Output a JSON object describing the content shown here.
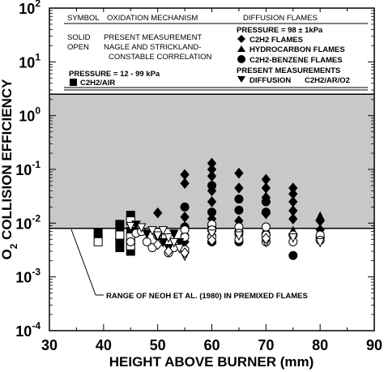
{
  "chart_data": {
    "type": "scatter",
    "xlabel": "HEIGHT ABOVE BURNER (mm)",
    "ylabel_parts": [
      "O",
      "2",
      " COLLISION EFFICIENCY"
    ],
    "xlim": [
      30,
      90
    ],
    "ylim": [
      0.0001,
      100
    ],
    "y_scale": "log",
    "x_ticks": [
      "30",
      "40",
      "50",
      "60",
      "70",
      "80",
      "90"
    ],
    "y_ticks": [
      {
        "base": "10",
        "exp": "2"
      },
      {
        "base": "10",
        "exp": "1"
      },
      {
        "base": "10",
        "exp": "0"
      },
      {
        "base": "10",
        "exp": "-1"
      },
      {
        "base": "10",
        "exp": "-2"
      },
      {
        "base": "10",
        "exp": "-3"
      },
      {
        "base": "10",
        "exp": "-4"
      }
    ],
    "band": {
      "ymin": 0.008,
      "ymax": 2.5,
      "color": "#c8c8c8"
    },
    "band_annotation": "RANGE OF NEOH ET AL. (1980) IN PREMIXED FLAMES",
    "legend": {
      "left_header": [
        "SYMBOL",
        "OXIDATION MECHANISM"
      ],
      "left_rows": [
        [
          "SOLID",
          "PRESENT MEASUREMENT"
        ],
        [
          "OPEN",
          "NAGLE AND STRICKLAND-"
        ],
        [
          "",
          "CONSTABLE CORRELATION"
        ]
      ],
      "left_pressure": "PRESSURE = 12 - 99 kPa",
      "left_series": "C2H2/AIR",
      "right_header": "DIFFUSION FLAMES",
      "right_pressure": "PRESSURE = 98 ± 1kPa",
      "right_series": [
        "C2H2 FLAMES",
        "HYDROCARBON FLAMES",
        "C2H2-BENZENE  FLAMES"
      ],
      "right_present": "PRESENT MEASUREMENTS",
      "right_diffusion": [
        "DIFFUSION",
        "C2H2/AR/O2"
      ]
    },
    "series": [
      {
        "marker": "square",
        "filled": true,
        "points": [
          [
            39,
            0.0065
          ],
          [
            43,
            0.0035
          ],
          [
            43,
            0.0045
          ],
          [
            43,
            0.0055
          ],
          [
            43,
            0.0075
          ],
          [
            43,
            0.0095
          ],
          [
            45,
            0.014
          ],
          [
            45,
            0.0045
          ],
          [
            45,
            0.003
          ],
          [
            45,
            0.007
          ]
        ]
      },
      {
        "marker": "square",
        "filled": false,
        "points": [
          [
            39,
            0.0045
          ],
          [
            43,
            0.006
          ],
          [
            45,
            0.011
          ],
          [
            45,
            0.0055
          ],
          [
            45,
            0.0038
          ]
        ]
      },
      {
        "marker": "diamond",
        "filled": true,
        "points": [
          [
            50,
            0.0155
          ],
          [
            55,
            0.08
          ],
          [
            55,
            0.055
          ],
          [
            55,
            0.013
          ],
          [
            55,
            0.006
          ],
          [
            55,
            0.0045
          ],
          [
            60,
            0.13
          ],
          [
            60,
            0.1
          ],
          [
            60,
            0.075
          ],
          [
            60,
            0.04
          ],
          [
            60,
            0.025
          ],
          [
            60,
            0.012
          ],
          [
            60,
            0.006
          ],
          [
            65,
            0.085
          ],
          [
            65,
            0.045
          ],
          [
            65,
            0.011
          ],
          [
            65,
            0.006
          ],
          [
            70,
            0.065
          ],
          [
            70,
            0.045
          ],
          [
            70,
            0.03
          ],
          [
            70,
            0.015
          ],
          [
            70,
            0.008
          ],
          [
            75,
            0.045
          ],
          [
            75,
            0.035
          ],
          [
            75,
            0.025
          ],
          [
            75,
            0.017
          ],
          [
            75,
            0.012
          ],
          [
            80,
            0.011
          ],
          [
            80,
            0.0075
          ]
        ]
      },
      {
        "marker": "triangle-up",
        "filled": true,
        "points": [
          [
            55,
            0.0085
          ],
          [
            60,
            0.008
          ],
          [
            60,
            0.0048
          ],
          [
            65,
            0.0082
          ],
          [
            65,
            0.0055
          ],
          [
            70,
            0.0075
          ],
          [
            75,
            0.007
          ],
          [
            80,
            0.013
          ]
        ]
      },
      {
        "marker": "circle",
        "filled": true,
        "points": [
          [
            55,
            0.02
          ],
          [
            55,
            0.0085
          ],
          [
            60,
            0.05
          ],
          [
            60,
            0.016
          ],
          [
            60,
            0.0085
          ],
          [
            60,
            0.0045
          ],
          [
            65,
            0.028
          ],
          [
            65,
            0.0175
          ],
          [
            65,
            0.0045
          ],
          [
            70,
            0.025
          ],
          [
            70,
            0.016
          ],
          [
            70,
            0.006
          ],
          [
            75,
            0.0025
          ],
          [
            80,
            0.0055
          ]
        ]
      },
      {
        "marker": "circle",
        "filled": false,
        "points": [
          [
            45,
            0.0045
          ],
          [
            46,
            0.0065
          ],
          [
            47,
            0.007
          ],
          [
            48,
            0.0045
          ],
          [
            49,
            0.0035
          ],
          [
            50,
            0.0058
          ],
          [
            52,
            0.0045
          ],
          [
            52,
            0.0028
          ],
          [
            53,
            0.0035
          ],
          [
            55,
            0.0075
          ],
          [
            55,
            0.0055
          ],
          [
            55,
            0.0032
          ],
          [
            60,
            0.0095
          ],
          [
            60,
            0.0075
          ],
          [
            60,
            0.0055
          ],
          [
            65,
            0.0085
          ],
          [
            65,
            0.0065
          ],
          [
            65,
            0.005
          ],
          [
            70,
            0.0085
          ],
          [
            70,
            0.006
          ],
          [
            70,
            0.0045
          ],
          [
            75,
            0.006
          ],
          [
            75,
            0.0045
          ],
          [
            80,
            0.006
          ],
          [
            80,
            0.0048
          ]
        ]
      },
      {
        "marker": "triangle-down",
        "filled": true,
        "points": [
          [
            46,
            0.0095
          ],
          [
            48,
            0.0065
          ],
          [
            50,
            0.0055
          ],
          [
            51,
            0.0045
          ],
          [
            52,
            0.0035
          ],
          [
            53,
            0.0065
          ],
          [
            54,
            0.0045
          ]
        ]
      },
      {
        "marker": "triangle-down",
        "filled": false,
        "points": [
          [
            45,
            0.009
          ],
          [
            47,
            0.0085
          ],
          [
            49,
            0.0075
          ],
          [
            50,
            0.006
          ],
          [
            51,
            0.0075
          ],
          [
            52,
            0.0055
          ],
          [
            53,
            0.0045
          ],
          [
            54,
            0.0035
          ],
          [
            55,
            0.0025
          ],
          [
            60,
            0.0065
          ],
          [
            65,
            0.006
          ],
          [
            70,
            0.0045
          ],
          [
            75,
            0.0055
          ],
          [
            80,
            0.0045
          ]
        ]
      },
      {
        "marker": "diamond",
        "filled": false,
        "points": [
          [
            50,
            0.004
          ],
          [
            52,
            0.003
          ],
          [
            55,
            0.0028
          ],
          [
            60,
            0.0048
          ],
          [
            70,
            0.0052
          ]
        ]
      }
    ]
  }
}
